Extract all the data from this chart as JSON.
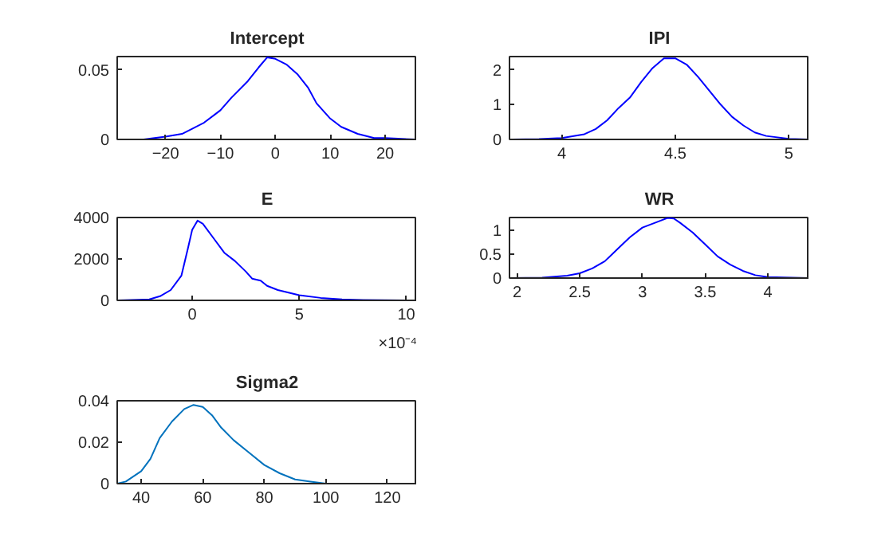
{
  "chart_data": [
    {
      "type": "line",
      "title": "Intercept",
      "x": [
        -28,
        -24,
        -20,
        -17,
        -15,
        -13,
        -11,
        -10,
        -8,
        -5,
        -3,
        -1.5,
        0,
        2,
        4,
        6,
        7.5,
        10,
        12,
        15,
        18,
        20,
        25.5
      ],
      "series": [
        {
          "color": "#0000ff",
          "values": [
            0,
            0,
            0.002,
            0.004,
            0.008,
            0.012,
            0.018,
            0.021,
            0.03,
            0.042,
            0.052,
            0.059,
            0.058,
            0.054,
            0.047,
            0.037,
            0.026,
            0.015,
            0.009,
            0.004,
            0.001,
            0.001,
            0
          ]
        }
      ],
      "xlim": [
        -28.8,
        25.8
      ],
      "xticks": [
        -20,
        -10,
        0,
        10,
        20
      ],
      "ylim": [
        0,
        0.0596
      ],
      "yticks": [
        0,
        0.05
      ],
      "grid": false
    },
    {
      "type": "line",
      "title": "IPI",
      "x": [
        3.78,
        3.9,
        4.0,
        4.1,
        4.15,
        4.2,
        4.25,
        4.3,
        4.35,
        4.4,
        4.45,
        4.5,
        4.55,
        4.6,
        4.65,
        4.7,
        4.75,
        4.8,
        4.85,
        4.9,
        5.0,
        5.09
      ],
      "series": [
        {
          "color": "#0000ff",
          "values": [
            0,
            0.01,
            0.04,
            0.15,
            0.3,
            0.55,
            0.9,
            1.2,
            1.65,
            2.05,
            2.33,
            2.33,
            2.15,
            1.8,
            1.4,
            1.0,
            0.65,
            0.4,
            0.2,
            0.1,
            0.02,
            0
          ]
        }
      ],
      "xlim": [
        3.77,
        5.09
      ],
      "xticks": [
        4,
        4.5,
        5
      ],
      "ylim": [
        0,
        2.38
      ],
      "yticks": [
        0,
        1,
        2
      ],
      "grid": false
    },
    {
      "type": "line",
      "title": "E",
      "annotations": [
        "×10⁻⁴"
      ],
      "x": [
        -3.5,
        -2,
        -1.5,
        -1,
        -0.5,
        -0.2,
        0,
        0.25,
        0.5,
        1,
        1.5,
        2,
        2.5,
        2.8,
        3.2,
        3.5,
        4,
        5,
        6,
        7,
        8,
        10.5
      ],
      "series": [
        {
          "color": "#0000ff",
          "values": [
            0,
            50,
            200,
            500,
            1200,
            2500,
            3400,
            3850,
            3700,
            3000,
            2300,
            1900,
            1400,
            1050,
            950,
            700,
            500,
            250,
            120,
            50,
            20,
            0
          ]
        }
      ],
      "xlim": [
        -3.5,
        10.5
      ],
      "xticks": [
        0,
        5,
        10
      ],
      "ylim": [
        0,
        4000
      ],
      "yticks": [
        0,
        2000,
        4000
      ],
      "grid": false
    },
    {
      "type": "line",
      "title": "WR",
      "x": [
        1.94,
        2.2,
        2.4,
        2.5,
        2.6,
        2.7,
        2.8,
        2.9,
        3.0,
        3.1,
        3.2,
        3.25,
        3.3,
        3.4,
        3.5,
        3.6,
        3.7,
        3.8,
        3.9,
        4.0,
        4.33
      ],
      "series": [
        {
          "color": "#0000ff",
          "values": [
            0,
            0.01,
            0.05,
            0.1,
            0.2,
            0.35,
            0.6,
            0.85,
            1.05,
            1.15,
            1.25,
            1.24,
            1.15,
            0.95,
            0.7,
            0.45,
            0.28,
            0.15,
            0.06,
            0.02,
            0
          ]
        }
      ],
      "xlim": [
        1.94,
        4.33
      ],
      "xticks": [
        2,
        2.5,
        3,
        3.5,
        4
      ],
      "ylim": [
        0,
        1.26
      ],
      "yticks": [
        0,
        0.5,
        1
      ],
      "grid": false
    },
    {
      "type": "line",
      "title": "Sigma2",
      "x": [
        32.2,
        35,
        40,
        43,
        46,
        50,
        54,
        57,
        60,
        63,
        66,
        70,
        75,
        80,
        85,
        90,
        95,
        100,
        110,
        129.6
      ],
      "series": [
        {
          "color": "#0072bd",
          "values": [
            0,
            0.001,
            0.006,
            0.012,
            0.022,
            0.03,
            0.036,
            0.038,
            0.037,
            0.033,
            0.027,
            0.021,
            0.015,
            0.009,
            0.005,
            0.002,
            0.001,
            0,
            0,
            0
          ]
        }
      ],
      "xlim": [
        32.2,
        129.6
      ],
      "xticks": [
        40,
        60,
        80,
        100,
        120
      ],
      "ylim": [
        0,
        0.04
      ],
      "yticks": [
        0,
        0.02,
        0.04
      ],
      "grid": false
    }
  ]
}
